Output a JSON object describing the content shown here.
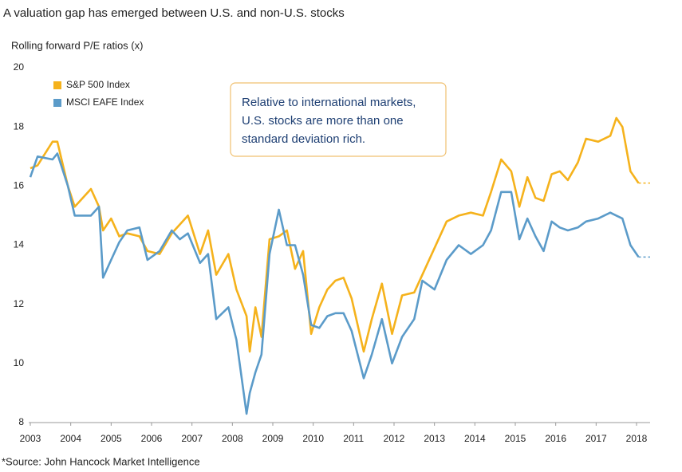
{
  "chart_data": {
    "type": "line",
    "title": "A valuation gap has emerged between U.S. and non-U.S. stocks",
    "y_label": "Rolling forward P/E ratios (x)",
    "annotation": [
      "Relative to international markets,",
      "U.S. stocks are more than one",
      "standard deviation rich."
    ],
    "source": "*Source:  John Hancock Market Intelligence",
    "legend": "upper left",
    "x": [
      2003.0,
      2003.18,
      2003.55,
      2003.67,
      2003.93,
      2004.1,
      2004.5,
      2004.7,
      2004.8,
      2005.0,
      2005.2,
      2005.4,
      2005.7,
      2005.9,
      2006.2,
      2006.5,
      2006.7,
      2006.9,
      2007.2,
      2007.4,
      2007.6,
      2007.9,
      2008.1,
      2008.35,
      2008.43,
      2008.57,
      2008.72,
      2008.92,
      2009.15,
      2009.35,
      2009.55,
      2009.75,
      2009.95,
      2010.15,
      2010.35,
      2010.55,
      2010.75,
      2010.95,
      2011.25,
      2011.45,
      2011.7,
      2011.95,
      2012.2,
      2012.5,
      2012.7,
      2013.0,
      2013.3,
      2013.6,
      2013.9,
      2014.2,
      2014.4,
      2014.65,
      2014.9,
      2015.1,
      2015.3,
      2015.5,
      2015.7,
      2015.9,
      2016.1,
      2016.3,
      2016.55,
      2016.75,
      2017.05,
      2017.35,
      2017.5,
      2017.65,
      2017.85,
      2018.05
    ],
    "series": [
      {
        "name": "S&P 500 Index",
        "color": "#f5b21c",
        "values": [
          16.6,
          16.7,
          17.5,
          17.5,
          16.0,
          15.3,
          15.9,
          15.3,
          14.5,
          14.9,
          14.3,
          14.4,
          14.3,
          13.8,
          13.7,
          14.4,
          14.7,
          15.0,
          13.7,
          14.5,
          13.0,
          13.7,
          12.5,
          11.6,
          10.4,
          11.9,
          10.9,
          14.2,
          14.3,
          14.5,
          13.2,
          13.8,
          11.0,
          11.9,
          12.5,
          12.8,
          12.9,
          12.2,
          10.4,
          11.5,
          12.7,
          11.0,
          12.3,
          12.4,
          13.0,
          13.9,
          14.8,
          15.0,
          15.1,
          15.0,
          15.8,
          16.9,
          16.5,
          15.3,
          16.3,
          15.6,
          15.5,
          16.4,
          16.5,
          16.2,
          16.8,
          17.6,
          17.5,
          17.7,
          18.3,
          18.0,
          16.5,
          16.1
        ]
      },
      {
        "name": "MSCI EAFE Index",
        "color": "#5b9bc9",
        "values": [
          16.3,
          17.0,
          16.9,
          17.1,
          16.0,
          15.0,
          15.0,
          15.3,
          12.9,
          13.5,
          14.1,
          14.5,
          14.6,
          13.5,
          13.8,
          14.5,
          14.2,
          14.4,
          13.4,
          13.7,
          11.5,
          11.9,
          10.8,
          8.3,
          9.0,
          9.7,
          10.3,
          13.7,
          15.2,
          14.0,
          14.0,
          13.0,
          11.3,
          11.2,
          11.6,
          11.7,
          11.7,
          11.1,
          9.5,
          10.3,
          11.5,
          10.0,
          10.9,
          11.5,
          12.8,
          12.5,
          13.5,
          14.0,
          13.7,
          14.0,
          14.5,
          15.8,
          15.8,
          14.2,
          14.9,
          14.3,
          13.8,
          14.8,
          14.6,
          14.5,
          14.6,
          14.8,
          14.9,
          15.1,
          15.0,
          14.9,
          14.0,
          13.6
        ]
      }
    ],
    "xlim": [
      2003,
      2018
    ],
    "xticks": [
      2003,
      2004,
      2005,
      2006,
      2007,
      2008,
      2009,
      2010,
      2011,
      2012,
      2013,
      2014,
      2015,
      2016,
      2017,
      2018
    ],
    "ylim": [
      8,
      20
    ],
    "yticks": [
      8,
      10,
      12,
      14,
      16,
      18,
      20
    ],
    "grid": false
  }
}
